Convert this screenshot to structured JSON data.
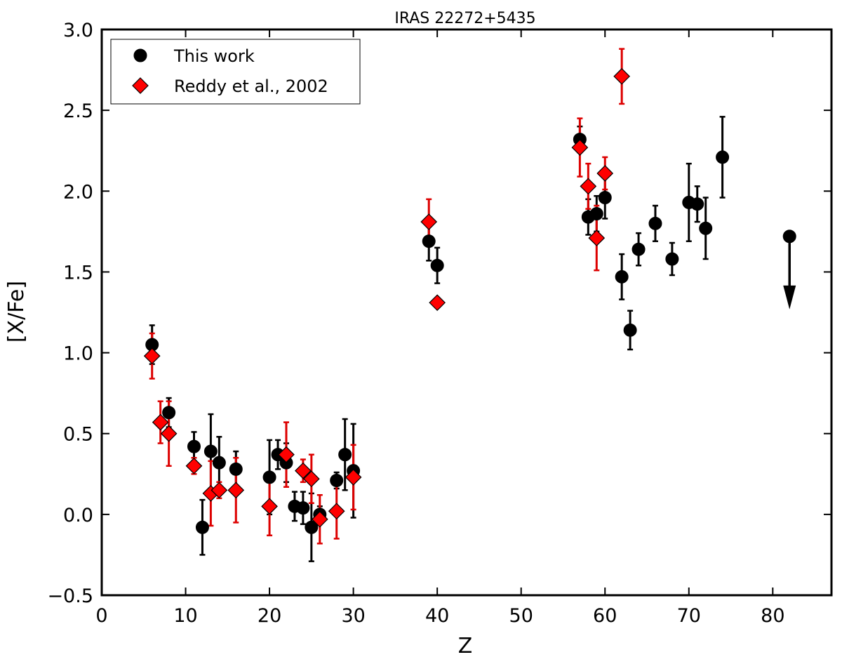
{
  "chart_data": {
    "type": "scatter",
    "title": "IRAS 22272+5435",
    "xlabel": "Z",
    "ylabel": "[X/Fe]",
    "xlim": [
      0,
      87
    ],
    "ylim": [
      -0.5,
      3.0
    ],
    "xticks": [
      0,
      10,
      20,
      30,
      40,
      50,
      60,
      70,
      80
    ],
    "yticks": [
      -0.5,
      0.0,
      0.5,
      1.0,
      1.5,
      2.0,
      2.5,
      3.0
    ],
    "xtick_labels": [
      "0",
      "10",
      "20",
      "30",
      "40",
      "50",
      "60",
      "70",
      "80"
    ],
    "ytick_labels": [
      "−0.5",
      "0.0",
      "0.5",
      "1.0",
      "1.5",
      "2.0",
      "2.5",
      "3.0"
    ],
    "grid": false,
    "legend_position": "top-left",
    "series": [
      {
        "name": "This work",
        "marker": "circle",
        "color": "#000000",
        "error_color": "#000000",
        "points": [
          {
            "x": 6,
            "y": 1.05,
            "err": 0.12
          },
          {
            "x": 8,
            "y": 0.63,
            "err": 0.09
          },
          {
            "x": 11,
            "y": 0.42,
            "err": 0.09
          },
          {
            "x": 12,
            "y": -0.08,
            "err": 0.17
          },
          {
            "x": 13,
            "y": 0.39,
            "err": 0.23
          },
          {
            "x": 14,
            "y": 0.32,
            "err": 0.16
          },
          {
            "x": 16,
            "y": 0.28,
            "err": 0.11
          },
          {
            "x": 20,
            "y": 0.23,
            "err": 0.23
          },
          {
            "x": 21,
            "y": 0.37,
            "err": 0.09
          },
          {
            "x": 22,
            "y": 0.32,
            "err": 0.12
          },
          {
            "x": 23,
            "y": 0.05,
            "err": 0.09
          },
          {
            "x": 24,
            "y": 0.04,
            "err": 0.1
          },
          {
            "x": 25,
            "y": -0.08,
            "err": 0.21
          },
          {
            "x": 26,
            "y": 0.0,
            "err": 0.05
          },
          {
            "x": 28,
            "y": 0.21,
            "err": 0.05
          },
          {
            "x": 29,
            "y": 0.37,
            "err": 0.22
          },
          {
            "x": 30,
            "y": 0.27,
            "err": 0.29
          },
          {
            "x": 39,
            "y": 1.69,
            "err": 0.12
          },
          {
            "x": 40,
            "y": 1.54,
            "err": 0.11
          },
          {
            "x": 57,
            "y": 2.32,
            "err": 0.08
          },
          {
            "x": 58,
            "y": 1.84,
            "err": 0.11
          },
          {
            "x": 59,
            "y": 1.86,
            "err": 0.11
          },
          {
            "x": 60,
            "y": 1.96,
            "err": 0.13
          },
          {
            "x": 62,
            "y": 1.47,
            "err": 0.14
          },
          {
            "x": 63,
            "y": 1.14,
            "err": 0.12
          },
          {
            "x": 64,
            "y": 1.64,
            "err": 0.1
          },
          {
            "x": 66,
            "y": 1.8,
            "err": 0.11
          },
          {
            "x": 68,
            "y": 1.58,
            "err": 0.1
          },
          {
            "x": 70,
            "y": 1.93,
            "err": 0.24
          },
          {
            "x": 71,
            "y": 1.92,
            "err": 0.11
          },
          {
            "x": 72,
            "y": 1.77,
            "err": 0.19
          },
          {
            "x": 74,
            "y": 2.21,
            "err": 0.25
          },
          {
            "x": 82,
            "y": 1.72,
            "upper_limit": true
          }
        ]
      },
      {
        "name": "Reddy et al., 2002",
        "marker": "diamond",
        "color": "#ff0000",
        "error_color": "#dd0000",
        "points": [
          {
            "x": 6,
            "y": 0.98,
            "err": 0.14
          },
          {
            "x": 7,
            "y": 0.57,
            "err": 0.13
          },
          {
            "x": 8,
            "y": 0.5,
            "err": 0.2
          },
          {
            "x": 11,
            "y": 0.3,
            "err": 0.05
          },
          {
            "x": 13,
            "y": 0.13,
            "err": 0.2
          },
          {
            "x": 14,
            "y": 0.15,
            "err": 0.05
          },
          {
            "x": 16,
            "y": 0.15,
            "err": 0.2
          },
          {
            "x": 20,
            "y": 0.05,
            "err": 0.18
          },
          {
            "x": 22,
            "y": 0.37,
            "err": 0.2
          },
          {
            "x": 24,
            "y": 0.27,
            "err": 0.07
          },
          {
            "x": 25,
            "y": 0.22,
            "err": 0.15
          },
          {
            "x": 26,
            "y": -0.03,
            "err": 0.15
          },
          {
            "x": 28,
            "y": 0.02,
            "err": 0.17
          },
          {
            "x": 30,
            "y": 0.23,
            "err": 0.2
          },
          {
            "x": 39,
            "y": 1.81,
            "err": 0.14
          },
          {
            "x": 40,
            "y": 1.31,
            "err": 0.0
          },
          {
            "x": 57,
            "y": 2.27,
            "err": 0.18
          },
          {
            "x": 58,
            "y": 2.03,
            "err": 0.14
          },
          {
            "x": 59,
            "y": 1.71,
            "err": 0.2
          },
          {
            "x": 60,
            "y": 2.11,
            "err": 0.1
          },
          {
            "x": 62,
            "y": 2.71,
            "err": 0.17
          }
        ]
      }
    ]
  }
}
